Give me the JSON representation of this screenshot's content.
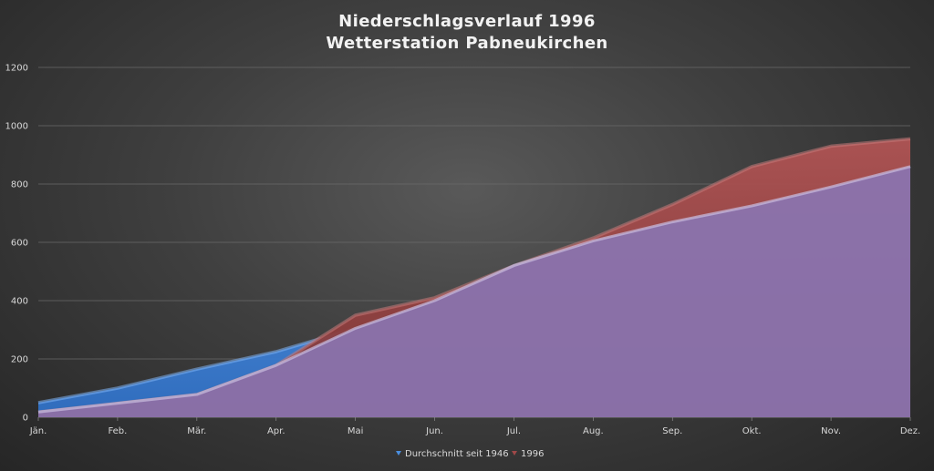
{
  "chart_data": {
    "type": "area",
    "title": "Niederschlagsverlauf 1996",
    "subtitle": "Wetterstation Pabneukirchen",
    "categories": [
      "Jän.",
      "Feb.",
      "Mär.",
      "Apr.",
      "Mai",
      "Jun.",
      "Jul.",
      "Aug.",
      "Sep.",
      "Okt.",
      "Nov.",
      "Dez."
    ],
    "series": [
      {
        "name": "Durchschnitt seit 1946",
        "color": "#4a8fe0",
        "values": [
          50,
          100,
          165,
          225,
          305,
          400,
          520,
          605,
          670,
          725,
          790,
          860
        ]
      },
      {
        "name": "1996",
        "color": "#a04848",
        "values": [
          18,
          48,
          78,
          178,
          350,
          410,
          520,
          615,
          730,
          860,
          930,
          955
        ]
      }
    ],
    "xlabel": "",
    "ylabel": "",
    "ylim": [
      0,
      1200
    ],
    "yticks": [
      "0",
      "200",
      "400",
      "600",
      "800",
      "1000",
      "1200"
    ],
    "grid": true,
    "legend_position": "bottom"
  }
}
